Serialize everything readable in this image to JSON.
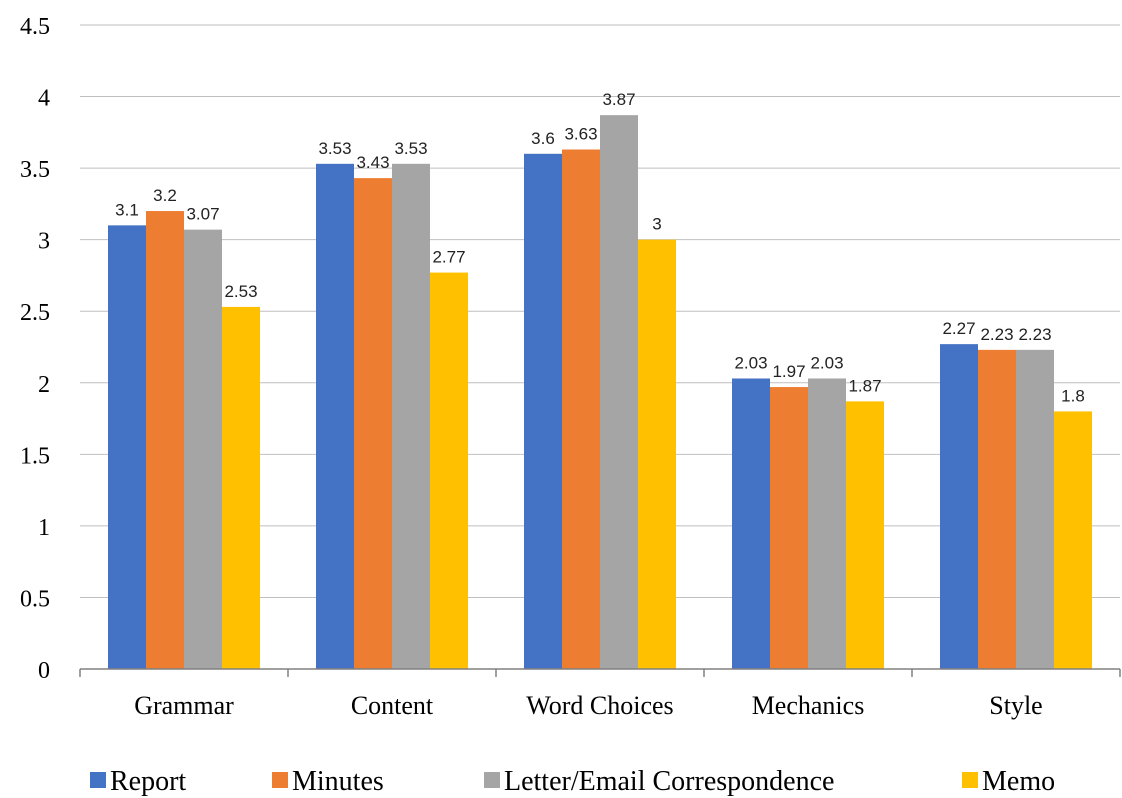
{
  "chart_data": {
    "type": "bar",
    "categories": [
      "Grammar",
      "Content",
      "Word Choices",
      "Mechanics",
      "Style"
    ],
    "series": [
      {
        "name": "Report",
        "color": "#4472C4",
        "values": [
          3.1,
          3.53,
          3.6,
          2.03,
          2.27
        ]
      },
      {
        "name": "Minutes",
        "color": "#ED7D31",
        "values": [
          3.2,
          3.43,
          3.63,
          1.97,
          2.23
        ]
      },
      {
        "name": "Letter/Email Correspondence",
        "color": "#A5A5A5",
        "values": [
          3.07,
          3.53,
          3.87,
          2.03,
          2.23
        ]
      },
      {
        "name": "Memo",
        "color": "#FFC000",
        "values": [
          2.53,
          2.77,
          3,
          1.87,
          1.8
        ]
      }
    ],
    "yticks": [
      "0",
      "0.5",
      "1",
      "1.5",
      "2",
      "2.5",
      "3",
      "3.5",
      "4",
      "4.5"
    ],
    "ylim": [
      0,
      4.5
    ],
    "grid": true,
    "legend_position": "bottom",
    "title": "",
    "xlabel": "",
    "ylabel": ""
  }
}
